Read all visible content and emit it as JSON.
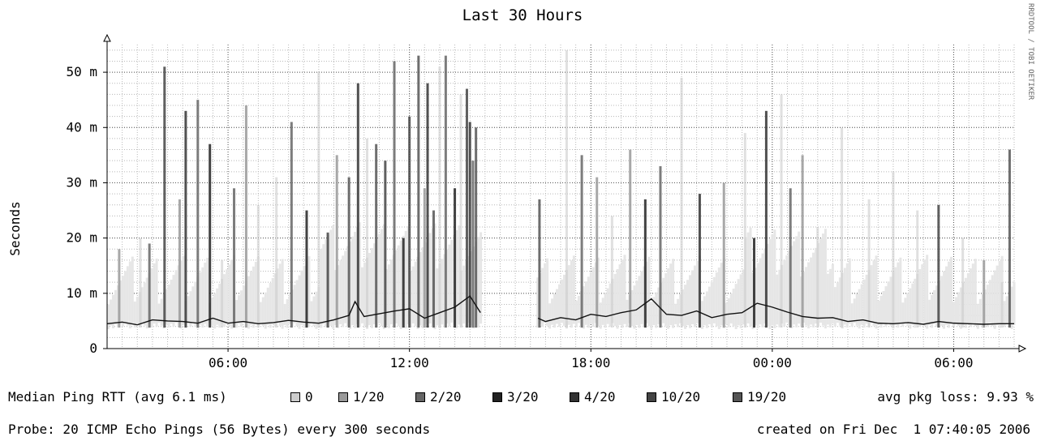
{
  "chart_data": {
    "type": "area",
    "title": "Last 30 Hours",
    "ylabel": "Seconds",
    "y_unit_suffix": "m",
    "y_ticks": [
      0,
      10,
      20,
      30,
      40,
      50
    ],
    "y_tick_labels": [
      "0",
      "10 m",
      "20 m",
      "30 m",
      "40 m",
      "50 m"
    ],
    "ylim": [
      0,
      55
    ],
    "x_range_hours": [
      0,
      30
    ],
    "x_ticks": [
      {
        "hour": 4,
        "label": "06:00"
      },
      {
        "hour": 10,
        "label": "12:00"
      },
      {
        "hour": 16,
        "label": "18:00"
      },
      {
        "hour": 22,
        "label": "00:00"
      },
      {
        "hour": 28,
        "label": "06:00"
      }
    ],
    "grid": true,
    "data_gap_hours": [
      12.4,
      14.2
    ],
    "median_series": {
      "name": "Median Ping RTT",
      "points_hours": [
        [
          0.0,
          4.5
        ],
        [
          0.5,
          4.8
        ],
        [
          1.0,
          4.3
        ],
        [
          1.5,
          5.2
        ],
        [
          2.0,
          5.0
        ],
        [
          2.5,
          4.9
        ],
        [
          3.0,
          4.6
        ],
        [
          3.5,
          5.5
        ],
        [
          4.0,
          4.6
        ],
        [
          4.5,
          4.9
        ],
        [
          5.0,
          4.5
        ],
        [
          5.5,
          4.7
        ],
        [
          6.0,
          5.1
        ],
        [
          6.5,
          4.8
        ],
        [
          7.0,
          4.6
        ],
        [
          7.5,
          5.2
        ],
        [
          8.0,
          6.0
        ],
        [
          8.2,
          8.5
        ],
        [
          8.5,
          5.8
        ],
        [
          9.0,
          6.3
        ],
        [
          9.5,
          6.8
        ],
        [
          10.0,
          7.2
        ],
        [
          10.5,
          5.5
        ],
        [
          11.0,
          6.5
        ],
        [
          11.5,
          7.5
        ],
        [
          12.0,
          9.5
        ],
        [
          12.35,
          6.5
        ],
        [
          14.25,
          5.5
        ],
        [
          14.5,
          4.9
        ],
        [
          15.0,
          5.6
        ],
        [
          15.5,
          5.2
        ],
        [
          16.0,
          6.2
        ],
        [
          16.5,
          5.8
        ],
        [
          17.0,
          6.5
        ],
        [
          17.5,
          7.0
        ],
        [
          18.0,
          9.0
        ],
        [
          18.5,
          6.2
        ],
        [
          19.0,
          6.0
        ],
        [
          19.5,
          6.8
        ],
        [
          20.0,
          5.6
        ],
        [
          20.5,
          6.2
        ],
        [
          21.0,
          6.5
        ],
        [
          21.5,
          8.2
        ],
        [
          22.0,
          7.5
        ],
        [
          22.5,
          6.6
        ],
        [
          23.0,
          5.8
        ],
        [
          23.5,
          5.5
        ],
        [
          24.0,
          5.6
        ],
        [
          24.5,
          4.9
        ],
        [
          25.0,
          5.2
        ],
        [
          25.5,
          4.6
        ],
        [
          26.0,
          4.5
        ],
        [
          26.5,
          4.7
        ],
        [
          27.0,
          4.4
        ],
        [
          27.5,
          4.9
        ],
        [
          28.0,
          4.6
        ],
        [
          28.5,
          4.5
        ],
        [
          29.0,
          4.4
        ],
        [
          29.5,
          4.5
        ],
        [
          30.0,
          4.5
        ]
      ]
    },
    "spikes_hours": [
      [
        0.4,
        18,
        1
      ],
      [
        1.1,
        20,
        0
      ],
      [
        1.4,
        19,
        2
      ],
      [
        1.9,
        51,
        5
      ],
      [
        2.4,
        27,
        1
      ],
      [
        2.6,
        43,
        4
      ],
      [
        3.0,
        45,
        2
      ],
      [
        3.4,
        37,
        3
      ],
      [
        3.8,
        16,
        0
      ],
      [
        4.2,
        29,
        2
      ],
      [
        4.6,
        44,
        1
      ],
      [
        5.0,
        26,
        0
      ],
      [
        5.6,
        31,
        0
      ],
      [
        6.1,
        41,
        2
      ],
      [
        6.6,
        25,
        3
      ],
      [
        7.0,
        50,
        0
      ],
      [
        7.3,
        21,
        5
      ],
      [
        7.6,
        35,
        1
      ],
      [
        8.0,
        31,
        6
      ],
      [
        8.3,
        48,
        4
      ],
      [
        8.6,
        38,
        0
      ],
      [
        8.9,
        37,
        6
      ],
      [
        9.2,
        34,
        5
      ],
      [
        9.5,
        52,
        2
      ],
      [
        9.8,
        20,
        3
      ],
      [
        10.0,
        42,
        5
      ],
      [
        10.3,
        53,
        6
      ],
      [
        10.5,
        29,
        1
      ],
      [
        10.6,
        48,
        4
      ],
      [
        10.8,
        25,
        6
      ],
      [
        11.0,
        51,
        0
      ],
      [
        11.2,
        53,
        2
      ],
      [
        11.5,
        29,
        3
      ],
      [
        11.7,
        46,
        0
      ],
      [
        11.9,
        47,
        5
      ],
      [
        12.0,
        41,
        4
      ],
      [
        12.1,
        34,
        2
      ],
      [
        12.2,
        40,
        6
      ],
      [
        14.3,
        27,
        6
      ],
      [
        15.2,
        54,
        0
      ],
      [
        15.7,
        35,
        2
      ],
      [
        16.2,
        31,
        1
      ],
      [
        16.7,
        24,
        0
      ],
      [
        17.3,
        36,
        1
      ],
      [
        17.8,
        27,
        3
      ],
      [
        18.3,
        33,
        2
      ],
      [
        19.0,
        49,
        0
      ],
      [
        19.6,
        28,
        4
      ],
      [
        20.4,
        30,
        1
      ],
      [
        21.1,
        39,
        0
      ],
      [
        21.4,
        20,
        3
      ],
      [
        21.8,
        43,
        4
      ],
      [
        22.3,
        46,
        0
      ],
      [
        22.6,
        29,
        2
      ],
      [
        23.0,
        35,
        1
      ],
      [
        23.5,
        22,
        0
      ],
      [
        24.3,
        40,
        0
      ],
      [
        25.2,
        27,
        0
      ],
      [
        26.0,
        32,
        0
      ],
      [
        26.8,
        25,
        0
      ],
      [
        27.5,
        26,
        5
      ],
      [
        28.3,
        20,
        0
      ],
      [
        29.0,
        16,
        1
      ],
      [
        29.6,
        12,
        0
      ],
      [
        29.85,
        36,
        6
      ]
    ],
    "legend": {
      "label": "Median Ping RTT (avg 6.1 ms)",
      "loss_label": "avg pkg loss: 9.93 %",
      "items": [
        {
          "label": "0",
          "color": "#cccccc"
        },
        {
          "label": "1/20",
          "color": "#999999"
        },
        {
          "label": "2/20",
          "color": "#666666"
        },
        {
          "label": "3/20",
          "color": "#222222"
        },
        {
          "label": "4/20",
          "color": "#333333"
        },
        {
          "label": "10/20",
          "color": "#444444"
        },
        {
          "label": "19/20",
          "color": "#555555"
        }
      ]
    }
  },
  "footer": {
    "probe": "Probe: 20 ICMP Echo Pings (56 Bytes) every 300 seconds",
    "created": "created on Fri Dec  1 07:40:05 2006"
  },
  "watermark": "RRDTOOL / TOBI OETIKER",
  "colors": {
    "grid_minor": "#b8b8b8",
    "grid_major": "#555555",
    "axis": "#000000",
    "smoke_base": "#e6e6e6"
  }
}
